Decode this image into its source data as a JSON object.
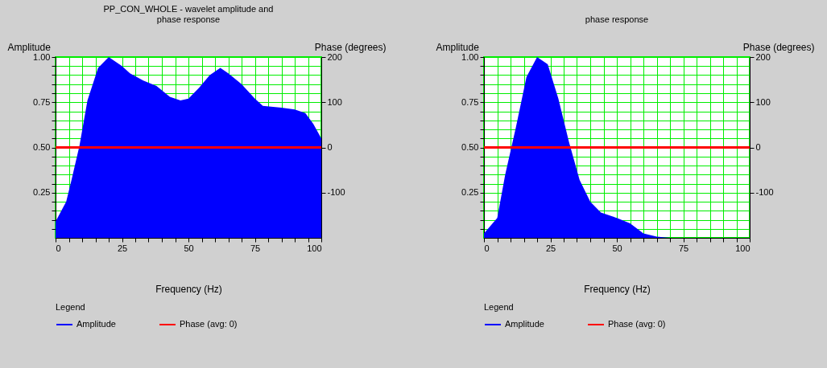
{
  "chart_data": [
    {
      "type": "area",
      "title": "PP_CON_WHOLE - wavelet amplitude and phase response",
      "xlabel": "Frequency (Hz)",
      "ylabel": "Amplitude",
      "y2label": "Phase (degrees)",
      "legend_title": "Legend",
      "legend": "bottom",
      "grid": true,
      "xlim": [
        0,
        100
      ],
      "xticks": [
        0,
        {
          "value": 5,
          "label": null
        },
        {
          "value": 10,
          "label": null
        },
        {
          "value": 15,
          "label": null
        },
        {
          "value": 20,
          "label": null
        },
        25,
        {
          "value": 30,
          "label": null
        },
        {
          "value": 35,
          "label": null
        },
        {
          "value": 40,
          "label": null
        },
        {
          "value": 45,
          "label": null
        },
        50,
        {
          "value": 55,
          "label": null
        },
        {
          "value": 60,
          "label": null
        },
        {
          "value": 65,
          "label": null
        },
        {
          "value": 70,
          "label": null
        },
        75,
        {
          "value": 80,
          "label": null
        },
        {
          "value": 85,
          "label": null
        },
        {
          "value": 90,
          "label": null
        },
        {
          "value": 95,
          "label": null
        },
        100
      ],
      "ylim": [
        0,
        1
      ],
      "yticks": [
        {
          "value": 0.05,
          "label": null
        },
        {
          "value": 0.1,
          "label": null
        },
        {
          "value": 0.15,
          "label": null
        },
        {
          "value": 0.2,
          "label": null
        },
        {
          "value": 0.25,
          "label": "0.25"
        },
        {
          "value": 0.3,
          "label": null
        },
        {
          "value": 0.35,
          "label": null
        },
        {
          "value": 0.4,
          "label": null
        },
        {
          "value": 0.45,
          "label": null
        },
        {
          "value": 0.5,
          "label": "0.50"
        },
        {
          "value": 0.55,
          "label": null
        },
        {
          "value": 0.6,
          "label": null
        },
        {
          "value": 0.65,
          "label": null
        },
        {
          "value": 0.7,
          "label": null
        },
        {
          "value": 0.75,
          "label": "0.75"
        },
        {
          "value": 0.8,
          "label": null
        },
        {
          "value": 0.85,
          "label": null
        },
        {
          "value": 0.9,
          "label": null
        },
        {
          "value": 0.95,
          "label": null
        },
        {
          "value": 1,
          "label": "1.00"
        }
      ],
      "y2lim": [
        -200,
        200
      ],
      "y2ticks": [
        -100,
        0,
        100,
        200
      ],
      "series": [
        {
          "name": "Amplitude",
          "color": "#0000ff",
          "x": [
            0,
            4,
            6,
            9,
            12,
            16,
            20,
            22,
            25,
            28,
            33,
            38,
            43,
            47,
            50,
            54,
            58,
            62,
            65,
            70,
            75,
            78,
            85,
            90,
            94,
            97,
            100
          ],
          "values": [
            0.09,
            0.2,
            0.32,
            0.51,
            0.76,
            0.94,
            1.0,
            0.98,
            0.95,
            0.91,
            0.87,
            0.84,
            0.78,
            0.76,
            0.77,
            0.83,
            0.9,
            0.94,
            0.91,
            0.85,
            0.77,
            0.73,
            0.72,
            0.71,
            0.69,
            0.63,
            0.55
          ]
        },
        {
          "name": "Phase (avg: 0)",
          "type": "line",
          "axis": "y2",
          "color": "#ff0000",
          "x": [
            0,
            100
          ],
          "values": [
            0,
            0
          ]
        }
      ]
    },
    {
      "type": "area",
      "title": "phase response",
      "xlabel": "Frequency (Hz)",
      "ylabel": "Amplitude",
      "y2label": "Phase (degrees)",
      "legend_title": "Legend",
      "legend": "bottom",
      "grid": true,
      "xlim": [
        0,
        100
      ],
      "xticks": [
        0,
        {
          "value": 5,
          "label": null
        },
        {
          "value": 10,
          "label": null
        },
        {
          "value": 15,
          "label": null
        },
        {
          "value": 20,
          "label": null
        },
        25,
        {
          "value": 30,
          "label": null
        },
        {
          "value": 35,
          "label": null
        },
        {
          "value": 40,
          "label": null
        },
        {
          "value": 45,
          "label": null
        },
        50,
        {
          "value": 55,
          "label": null
        },
        {
          "value": 60,
          "label": null
        },
        {
          "value": 65,
          "label": null
        },
        {
          "value": 70,
          "label": null
        },
        75,
        {
          "value": 80,
          "label": null
        },
        {
          "value": 85,
          "label": null
        },
        {
          "value": 90,
          "label": null
        },
        {
          "value": 95,
          "label": null
        },
        100
      ],
      "ylim": [
        0,
        1
      ],
      "yticks": [
        {
          "value": 0.05,
          "label": null
        },
        {
          "value": 0.1,
          "label": null
        },
        {
          "value": 0.15,
          "label": null
        },
        {
          "value": 0.2,
          "label": null
        },
        {
          "value": 0.25,
          "label": "0.25"
        },
        {
          "value": 0.3,
          "label": null
        },
        {
          "value": 0.35,
          "label": null
        },
        {
          "value": 0.4,
          "label": null
        },
        {
          "value": 0.45,
          "label": null
        },
        {
          "value": 0.5,
          "label": "0.50"
        },
        {
          "value": 0.55,
          "label": null
        },
        {
          "value": 0.6,
          "label": null
        },
        {
          "value": 0.65,
          "label": null
        },
        {
          "value": 0.7,
          "label": null
        },
        {
          "value": 0.75,
          "label": "0.75"
        },
        {
          "value": 0.8,
          "label": null
        },
        {
          "value": 0.85,
          "label": null
        },
        {
          "value": 0.9,
          "label": null
        },
        {
          "value": 0.95,
          "label": null
        },
        {
          "value": 1,
          "label": "1.00"
        }
      ],
      "y2lim": [
        -200,
        200
      ],
      "y2ticks": [
        -100,
        0,
        100,
        200
      ],
      "series": [
        {
          "name": "Amplitude",
          "color": "#0000ff",
          "x": [
            0,
            5,
            8,
            12,
            16,
            20,
            24,
            28,
            32,
            36,
            40,
            44,
            50,
            55,
            60,
            65,
            70,
            100
          ],
          "values": [
            0.025,
            0.11,
            0.35,
            0.61,
            0.89,
            1.0,
            0.96,
            0.77,
            0.53,
            0.32,
            0.2,
            0.14,
            0.11,
            0.08,
            0.025,
            0.007,
            0,
            0
          ]
        },
        {
          "name": "Phase (avg: 0)",
          "type": "line",
          "axis": "y2",
          "color": "#ff0000",
          "x": [
            0,
            100
          ],
          "values": [
            0,
            0
          ]
        }
      ]
    }
  ]
}
